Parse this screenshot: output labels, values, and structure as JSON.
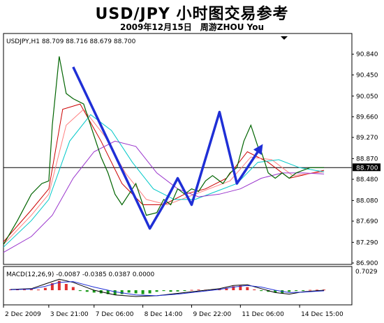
{
  "page": {
    "title": "USD/JPY 小时图交易参考",
    "subtitle": "2009年12月15日　周游ZHOU You"
  },
  "chart_data": [
    {
      "type": "line",
      "header": "USDJPY,H1 88.709 88.716 88.679 88.700",
      "current_price": 88.7,
      "ylim": [
        86.9,
        91.1
      ],
      "yticks": [
        90.84,
        90.45,
        90.05,
        89.66,
        89.27,
        88.87,
        88.48,
        88.08,
        87.69,
        87.29,
        86.9
      ],
      "x_range": [
        0,
        100
      ],
      "x_tick_positions": [
        0,
        13,
        26,
        40,
        54,
        68,
        85
      ],
      "x_tick_labels": [
        "2 Dec 2009",
        "3 Dec 21:00",
        "7 Dec 06:00",
        "8 Dec 14:00",
        "9 Dec 22:00",
        "11 Dec 06:00",
        "14 Dec 15:00"
      ],
      "price_path": {
        "x": [
          0,
          4,
          8,
          11,
          13,
          14,
          16,
          18,
          20,
          23,
          26,
          28,
          30,
          32,
          34,
          36,
          38,
          41,
          44,
          46,
          48,
          50,
          52,
          54,
          56,
          58,
          60,
          63,
          65,
          67,
          69,
          71,
          72,
          73,
          74,
          75,
          76,
          78,
          80,
          82,
          84,
          86,
          88,
          90,
          92
        ],
        "y": [
          87.25,
          87.7,
          88.2,
          88.4,
          88.45,
          89.5,
          90.8,
          90.1,
          90.0,
          89.9,
          89.3,
          88.9,
          88.6,
          88.2,
          88.0,
          88.2,
          88.4,
          87.8,
          87.85,
          88.1,
          88.0,
          88.3,
          88.2,
          88.3,
          88.25,
          88.45,
          88.55,
          88.4,
          88.6,
          88.7,
          89.2,
          89.5,
          89.3,
          89.1,
          89.0,
          88.8,
          88.6,
          88.5,
          88.6,
          88.5,
          88.6,
          88.65,
          88.7,
          88.7,
          88.7
        ]
      },
      "moving_averages": [
        {
          "color": "#cc0000",
          "x": [
            0,
            8,
            13,
            17,
            22,
            28,
            34,
            40,
            46,
            52,
            58,
            64,
            70,
            76,
            82,
            92
          ],
          "y": [
            87.3,
            87.9,
            88.3,
            89.8,
            89.9,
            89.2,
            88.4,
            88.0,
            88.0,
            88.2,
            88.3,
            88.5,
            89.0,
            88.8,
            88.5,
            88.65
          ]
        },
        {
          "color": "#ff8080",
          "x": [
            0,
            8,
            13,
            18,
            23,
            29,
            35,
            41,
            47,
            53,
            59,
            65,
            71,
            77,
            83,
            92
          ],
          "y": [
            87.25,
            87.8,
            88.2,
            89.5,
            89.8,
            89.3,
            88.6,
            88.1,
            88.0,
            88.15,
            88.3,
            88.45,
            88.9,
            88.85,
            88.55,
            88.62
          ]
        },
        {
          "color": "#00c8c8",
          "x": [
            0,
            8,
            13,
            19,
            25,
            31,
            37,
            43,
            49,
            55,
            61,
            67,
            73,
            79,
            85,
            92
          ],
          "y": [
            87.2,
            87.7,
            88.1,
            89.2,
            89.7,
            89.4,
            88.8,
            88.3,
            88.1,
            88.1,
            88.25,
            88.4,
            88.8,
            88.85,
            88.7,
            88.62
          ]
        },
        {
          "color": "#9933cc",
          "x": [
            0,
            8,
            14,
            20,
            26,
            32,
            38,
            44,
            50,
            56,
            62,
            68,
            74,
            80,
            86,
            92
          ],
          "y": [
            87.1,
            87.4,
            87.8,
            88.5,
            89.0,
            89.2,
            89.1,
            88.6,
            88.3,
            88.15,
            88.2,
            88.3,
            88.5,
            88.6,
            88.6,
            88.58
          ]
        }
      ],
      "trend_path": {
        "color": "#1f2fd6",
        "x": [
          20,
          42,
          46,
          50,
          54,
          62,
          67,
          71,
          74
        ],
        "y": [
          90.6,
          87.55,
          88.0,
          88.5,
          88.0,
          89.75,
          88.4,
          88.8,
          89.1
        ]
      }
    },
    {
      "type": "bar",
      "header": "MACD(12,26,9) -0.0087 -0.0385 0.0387 0.0000",
      "max_label": "0.7029",
      "ylim": [
        -0.8,
        0.8
      ],
      "x_range": [
        0,
        100
      ],
      "histogram": {
        "x": [
          2,
          4,
          6,
          8,
          10,
          12,
          14,
          16,
          18,
          20,
          22,
          24,
          26,
          28,
          30,
          32,
          34,
          36,
          38,
          40,
          42,
          44,
          46,
          48,
          50,
          52,
          54,
          56,
          58,
          60,
          62,
          64,
          66,
          68,
          70,
          72,
          74,
          76,
          78,
          80,
          82,
          84,
          86,
          88,
          90,
          92
        ],
        "values": [
          0.05,
          0.08,
          0.1,
          0.06,
          0.04,
          0.15,
          0.45,
          0.6,
          0.4,
          0.2,
          -0.05,
          -0.1,
          -0.15,
          -0.2,
          -0.25,
          -0.3,
          -0.25,
          -0.15,
          -0.2,
          -0.25,
          -0.2,
          -0.1,
          -0.05,
          -0.1,
          -0.08,
          -0.05,
          0.02,
          0.04,
          0.03,
          0.05,
          0.08,
          0.15,
          0.25,
          0.3,
          0.2,
          0.05,
          -0.05,
          -0.1,
          -0.15,
          -0.2,
          -0.1,
          -0.05,
          -0.02,
          0.02,
          0.03,
          0.04
        ]
      },
      "macd_line": {
        "color": "#000000",
        "x": [
          2,
          8,
          12,
          16,
          20,
          26,
          32,
          38,
          44,
          50,
          56,
          62,
          66,
          70,
          74,
          78,
          82,
          86,
          92
        ],
        "y": [
          0.05,
          0.1,
          0.4,
          0.7,
          0.5,
          0.0,
          -0.3,
          -0.4,
          -0.35,
          -0.2,
          -0.05,
          0.1,
          0.3,
          0.35,
          0.1,
          -0.15,
          -0.25,
          -0.1,
          0.0
        ]
      },
      "signal_line": {
        "color": "#1f2fd6",
        "x": [
          2,
          8,
          12,
          16,
          20,
          26,
          32,
          38,
          44,
          50,
          56,
          62,
          66,
          70,
          74,
          78,
          82,
          86,
          92
        ],
        "y": [
          0.03,
          0.07,
          0.25,
          0.5,
          0.55,
          0.2,
          -0.1,
          -0.3,
          -0.35,
          -0.25,
          -0.1,
          0.05,
          0.2,
          0.3,
          0.2,
          0.0,
          -0.15,
          -0.12,
          -0.04
        ]
      }
    }
  ]
}
